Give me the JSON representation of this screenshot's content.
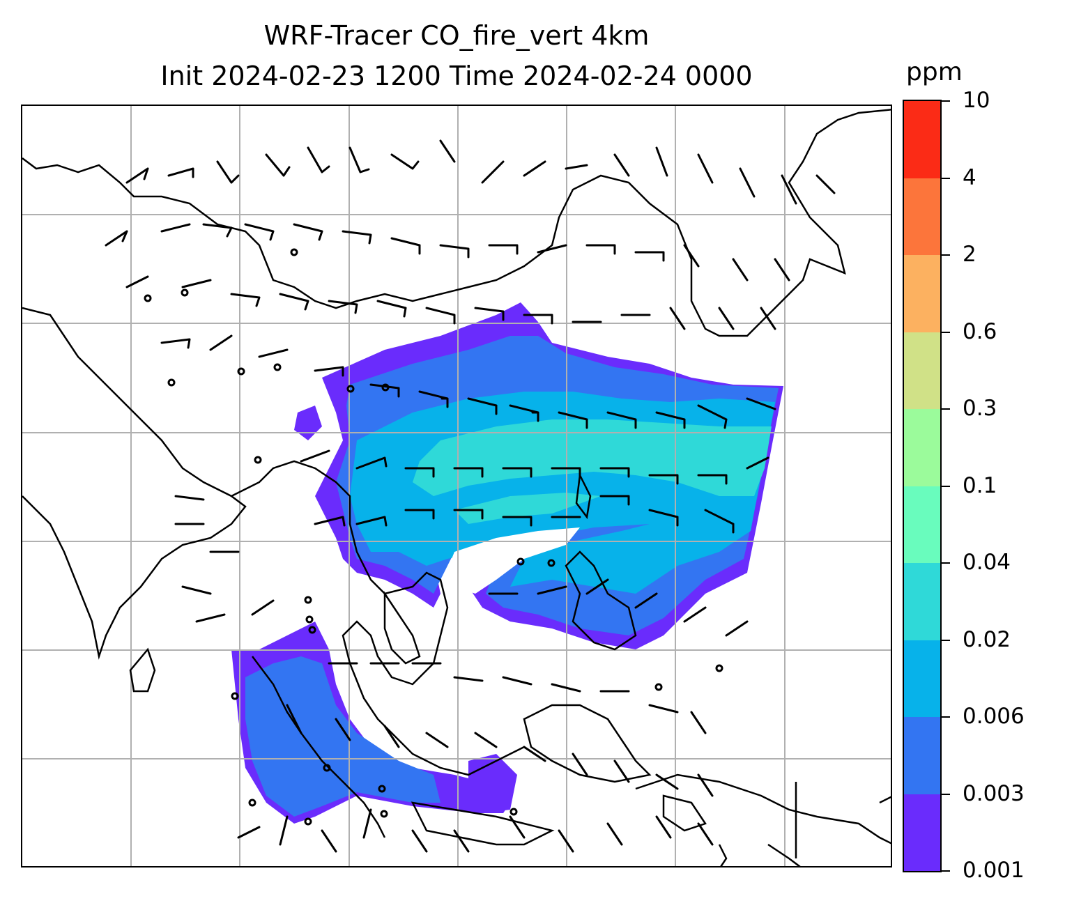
{
  "title": {
    "line1": "WRF-Tracer CO_fire_vert 4km",
    "line2": "Init 2024-02-23 1200 Time 2024-02-24 0000"
  },
  "colorbar": {
    "unit": "ppm",
    "levels": [
      "0.001",
      "0.003",
      "0.006",
      "0.02",
      "0.04",
      "0.1",
      "0.3",
      "0.6",
      "2",
      "4",
      "10"
    ],
    "colors": [
      "#6a2cfc",
      "#3375f2",
      "#07b2ea",
      "#2fd9d8",
      "#69fcbd",
      "#9bfb9b",
      "#d0e187",
      "#fcb160",
      "#fc753b",
      "#fb2b16"
    ]
  },
  "map": {
    "gridlines": true,
    "coastline_color": "#000000",
    "wind_barbs": true
  }
}
